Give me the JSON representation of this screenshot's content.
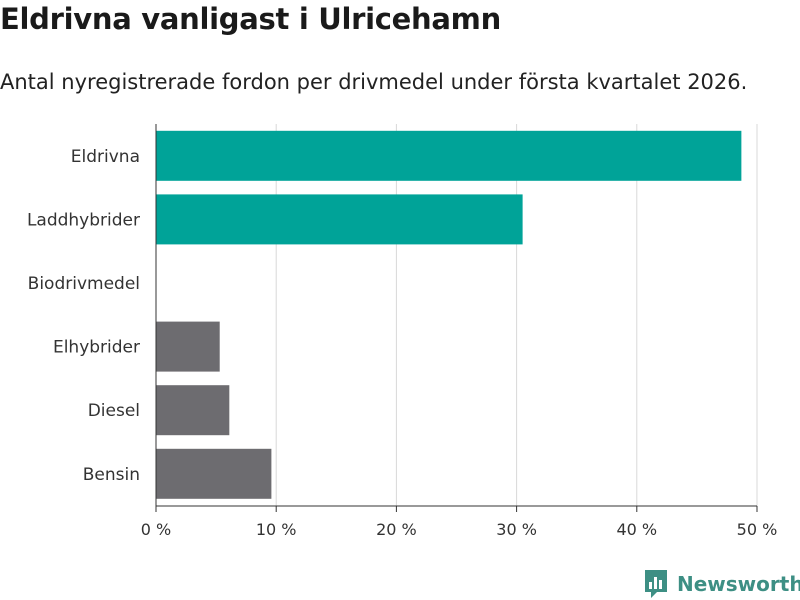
{
  "title": "Eldrivna vanligast i Ulricehamn",
  "subtitle": "Antal nyregistrerade fordon per drivmedel under första kvartalet 2026.",
  "brand": {
    "name": "Newsworthy",
    "logo_icon": "bar-chart-bubble-icon",
    "color": "#3d8f84"
  },
  "colors": {
    "highlight": "#00a398",
    "other": "#6d6c70",
    "grid": "#d8d8d8",
    "axis": "#333333"
  },
  "chart_data": {
    "type": "bar",
    "orientation": "horizontal",
    "title": "Eldrivna vanligast i Ulricehamn",
    "subtitle": "Antal nyregistrerade fordon per drivmedel under första kvartalet 2026.",
    "xlabel": "",
    "ylabel": "",
    "unit": "%",
    "categories": [
      "Eldrivna",
      "Laddhybrider",
      "Biodrivmedel",
      "Elhybrider",
      "Diesel",
      "Bensin"
    ],
    "values": [
      48.7,
      30.5,
      0,
      5.3,
      6.1,
      9.6
    ],
    "highlighted": [
      true,
      true,
      false,
      false,
      false,
      false
    ],
    "xlim": [
      0,
      50
    ],
    "ticks": [
      0,
      10,
      20,
      30,
      40,
      50
    ],
    "tick_labels": [
      "0 %",
      "10 %",
      "20 %",
      "30 %",
      "40 %",
      "50 %"
    ],
    "grid": true,
    "legend": "none"
  }
}
